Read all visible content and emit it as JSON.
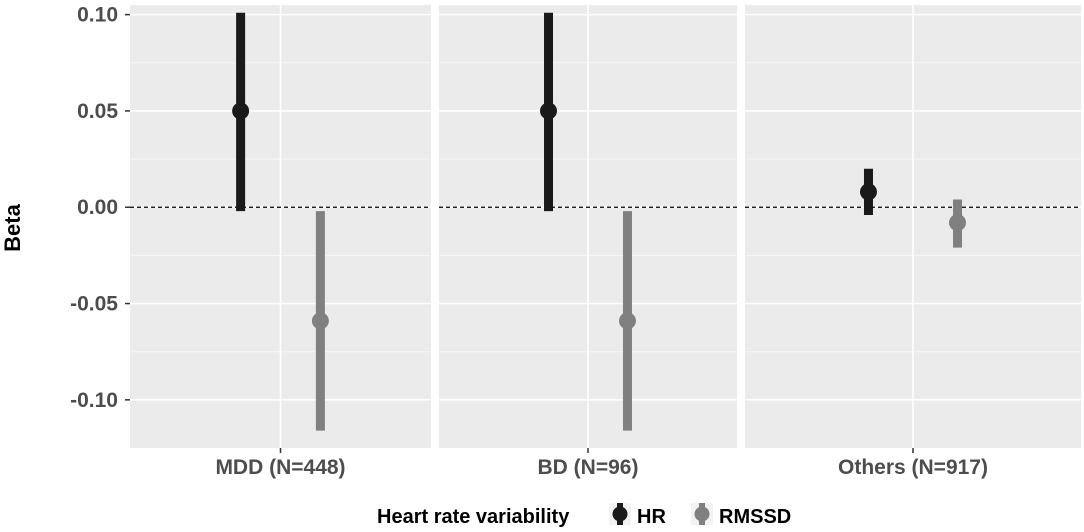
{
  "chart_data": {
    "type": "pointrange",
    "title": "",
    "ylabel": "Beta",
    "xlabel": "",
    "ylim": [
      -0.125,
      0.105
    ],
    "yticks": [
      0.1,
      0.05,
      0.0,
      -0.05,
      -0.1
    ],
    "ytick_labels": [
      "0.10",
      "0.05",
      "0.00",
      "-0.05",
      "-0.10"
    ],
    "reference_line": 0,
    "categories": [
      "MDD (N=448)",
      "BD (N=96)",
      "Others (N=917)"
    ],
    "series": [
      {
        "name": "HR",
        "color": "#1a1a1a",
        "values": [
          0.05,
          0.05,
          0.008
        ],
        "lower": [
          -0.002,
          -0.002,
          -0.004
        ],
        "upper": [
          0.101,
          0.101,
          0.02
        ]
      },
      {
        "name": "RMSSD",
        "color": "#808080",
        "values": [
          -0.059,
          -0.059,
          -0.008
        ],
        "lower": [
          -0.116,
          -0.116,
          -0.021
        ],
        "upper": [
          -0.002,
          -0.002,
          0.004
        ]
      }
    ],
    "legend": {
      "title": "Heart rate variability",
      "position": "bottom",
      "entries": [
        "HR",
        "RMSSD"
      ]
    }
  }
}
